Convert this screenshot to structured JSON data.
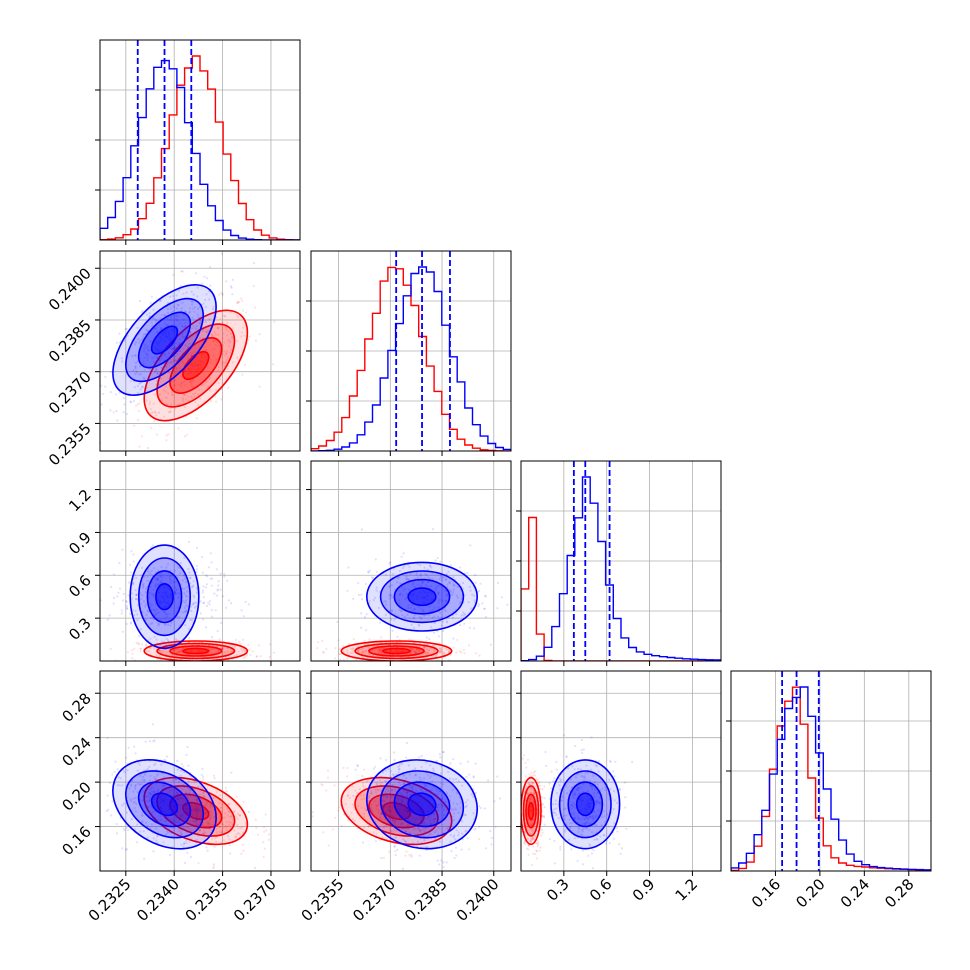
{
  "chart_data": {
    "type": "corner",
    "parameters": [
      {
        "ticks": [
          0.2325,
          0.234,
          0.2355,
          0.237
        ],
        "tick_labels": [
          "0.2325",
          "0.2340",
          "0.2355",
          "0.2370"
        ]
      },
      {
        "ticks": [
          0.2355,
          0.237,
          0.2385,
          0.24
        ],
        "tick_labels": [
          "0.2355",
          "0.2370",
          "0.2385",
          "0.2400"
        ]
      },
      {
        "ticks": [
          0.3,
          0.6,
          0.9,
          1.2
        ],
        "tick_labels": [
          "0.3",
          "0.6",
          "0.9",
          "1.2"
        ]
      },
      {
        "ticks": [
          0.16,
          0.2,
          0.24,
          0.28
        ],
        "tick_labels": [
          "0.16",
          "0.20",
          "0.24",
          "0.28"
        ]
      }
    ],
    "series": [
      {
        "color": "#ff0000",
        "centers": [
          0.23467,
          0.23718,
          0.07,
          0.174
        ],
        "sigmas": [
          0.0008,
          0.0008,
          0.035,
          0.015
        ],
        "correlations": {
          "1-0": 0.6,
          "3-0": -0.4,
          "3-1": -0.3,
          "3-2": 0.0
        },
        "quantiles": []
      },
      {
        "color": "#0000ff",
        "centers": [
          0.2337,
          0.23792,
          0.45,
          0.18
        ],
        "sigmas": [
          0.0008,
          0.0008,
          0.12,
          0.02
        ],
        "correlations": {
          "1-0": 0.6,
          "3-0": -0.3,
          "3-1": -0.1,
          "3-2": 0.0
        },
        "quantiles": [
          [
            0.23287,
            0.2337,
            0.23453
          ],
          [
            0.23717,
            0.23792,
            0.23873
          ],
          [
            0.37,
            0.45,
            0.62
          ],
          [
            0.166,
            0.179,
            0.199
          ]
        ]
      }
    ]
  }
}
